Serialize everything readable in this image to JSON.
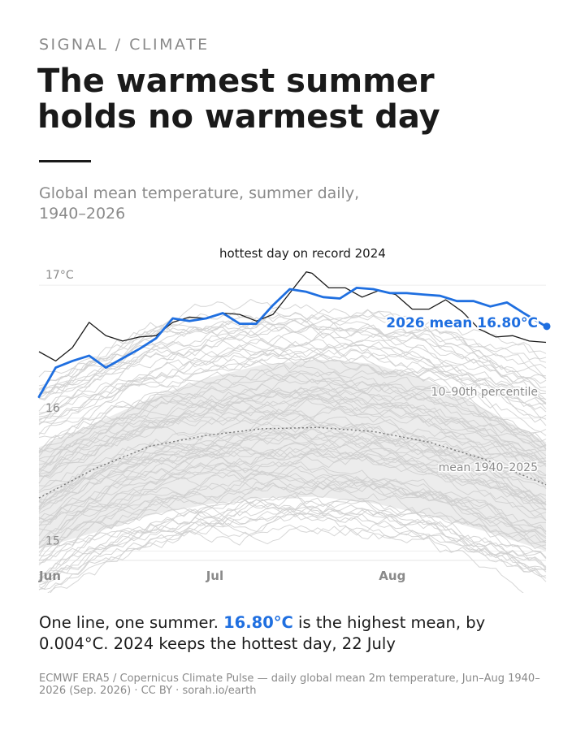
{
  "kicker": "SIGNAL / CLIMATE",
  "title": "The warmest summer holds no warmest day",
  "subtitle": "Global mean temperature, summer daily, 1940–2026",
  "caption": {
    "part1": "One line, one summer. ",
    "highlight": "16.80°C",
    "part2": " is the highest mean, by 0.004°C. 2024 keeps the hottest day, 22 July"
  },
  "source": "ECMWF ERA5 / Copernicus Climate Pulse — daily global mean 2m temperature, Jun–Aug 1940–2026 (Sep. 2026) · CC BY · sorah.io/earth",
  "colors": {
    "highlight": "#1f6fe0",
    "record": "#1a1a1a",
    "history": "#cfcfcf",
    "band": "#ececec",
    "mean": "#777777",
    "muted": "#8a8a8a"
  },
  "chart_data": {
    "type": "line",
    "x_unit": "day of summer (1 = 1 June)",
    "xlim": [
      1,
      92
    ],
    "ylim": [
      14.93,
      17.08
    ],
    "yticks": [
      {
        "value": 17.0,
        "label": "17°C"
      },
      {
        "value": 16.0,
        "label": "16"
      },
      {
        "value": 15.0,
        "label": "15"
      }
    ],
    "xticks": [
      {
        "day": 1,
        "label": "Jun"
      },
      {
        "day": 31,
        "label": "Jul"
      },
      {
        "day": 62,
        "label": "Aug"
      }
    ],
    "grid": true,
    "annotations": {
      "record": "hottest day on record 2024",
      "current": "2026 mean 16.80°C",
      "band": "10–90th percentile",
      "mean": "mean 1940–2025"
    },
    "highlight_2026": {
      "x": [
        1,
        4,
        7,
        10,
        13,
        16,
        19,
        22,
        25,
        28,
        31,
        34,
        37,
        40,
        43,
        46,
        49,
        52,
        55,
        58,
        61,
        64,
        67,
        70,
        73,
        76,
        79,
        82,
        85,
        88,
        92
      ],
      "y": [
        16.16,
        16.38,
        16.43,
        16.47,
        16.38,
        16.45,
        16.52,
        16.6,
        16.75,
        16.73,
        16.75,
        16.79,
        16.71,
        16.71,
        16.85,
        16.97,
        16.95,
        16.91,
        16.9,
        16.98,
        16.97,
        16.94,
        16.94,
        16.93,
        16.92,
        16.88,
        16.88,
        16.84,
        16.87,
        16.79,
        16.69
      ]
    },
    "record_2024": {
      "x": [
        1,
        4,
        7,
        10,
        13,
        16,
        19,
        22,
        25,
        28,
        31,
        34,
        37,
        40,
        43,
        46,
        49,
        50,
        53,
        56,
        59,
        62,
        65,
        68,
        71,
        74,
        77,
        80,
        83,
        86,
        89,
        92
      ],
      "y": [
        16.5,
        16.43,
        16.53,
        16.72,
        16.62,
        16.58,
        16.61,
        16.62,
        16.72,
        16.76,
        16.75,
        16.79,
        16.78,
        16.73,
        16.78,
        16.94,
        17.1,
        17.09,
        16.98,
        16.98,
        16.91,
        16.96,
        16.93,
        16.82,
        16.82,
        16.89,
        16.8,
        16.67,
        16.61,
        16.62,
        16.58,
        16.57
      ]
    },
    "percentile_10_90": {
      "x": [
        1,
        11,
        21,
        31,
        41,
        51,
        61,
        71,
        81,
        92
      ],
      "low": [
        15.02,
        15.14,
        15.27,
        15.35,
        15.4,
        15.41,
        15.36,
        15.27,
        15.15,
        15.0
      ],
      "high": [
        15.78,
        15.96,
        16.15,
        16.3,
        16.4,
        16.44,
        16.41,
        16.28,
        16.07,
        15.82
      ]
    },
    "mean_1940_2025": {
      "x": [
        1,
        11,
        21,
        31,
        41,
        51,
        61,
        71,
        81,
        92
      ],
      "y": [
        15.4,
        15.62,
        15.79,
        15.87,
        15.92,
        15.93,
        15.9,
        15.82,
        15.69,
        15.5
      ]
    }
  }
}
